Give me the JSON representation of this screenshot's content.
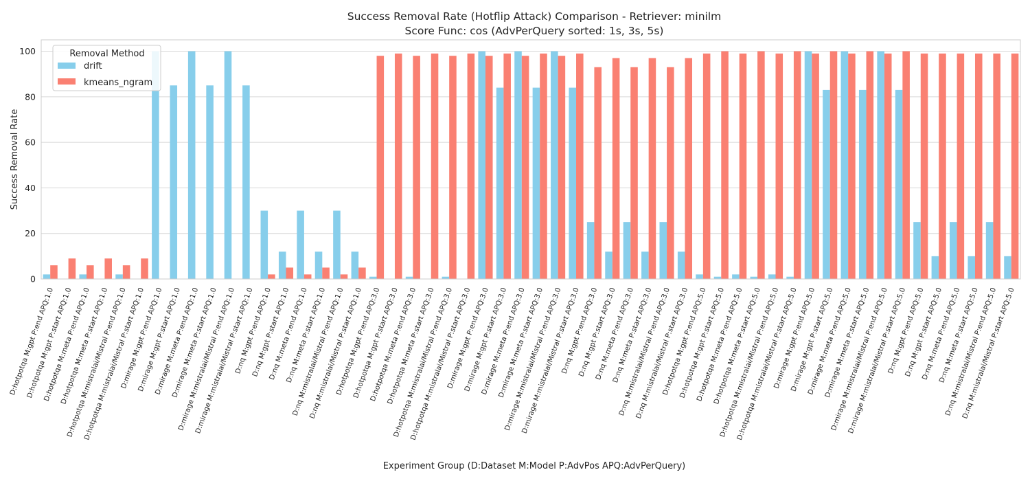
{
  "chart_data": {
    "type": "bar",
    "title": "Success Removal Rate (Hotflip Attack) Comparison - Retriever: minilm",
    "subtitle": "Score Func: cos (AdvPerQuery sorted: 1s, 3s, 5s)",
    "xlabel": "Experiment Group (D:Dataset M:Model P:AdvPos APQ:AdvPerQuery)",
    "ylabel": "Success Removal Rate",
    "ylim": [
      0,
      105
    ],
    "yticks": [
      0,
      20,
      40,
      60,
      80,
      100
    ],
    "grid": true,
    "legend": {
      "title": "Removal Method",
      "placement": "top-left"
    },
    "categories": [
      "D:hotpotqa M:gpt P:end APQ:1.0",
      "D:hotpotqa M:gpt P:start APQ:1.0",
      "D:hotpotqa M:meta P:end APQ:1.0",
      "D:hotpotqa M:meta P:start APQ:1.0",
      "D:hotpotqa M:mistralai/Mistral P:end APQ:1.0",
      "D:hotpotqa M:mistralai/Mistral P:start APQ:1.0",
      "D:mirage M:gpt P:end APQ:1.0",
      "D:mirage M:gpt P:start APQ:1.0",
      "D:mirage M:meta P:end APQ:1.0",
      "D:mirage M:meta P:start APQ:1.0",
      "D:mirage M:mistralai/Mistral P:end APQ:1.0",
      "D:mirage M:mistralai/Mistral P:start APQ:1.0",
      "D:nq M:gpt P:end APQ:1.0",
      "D:nq M:gpt P:start APQ:1.0",
      "D:nq M:meta P:end APQ:1.0",
      "D:nq M:meta P:start APQ:1.0",
      "D:nq M:mistralai/Mistral P:end APQ:1.0",
      "D:nq M:mistralai/Mistral P:start APQ:1.0",
      "D:hotpotqa M:gpt P:end APQ:3.0",
      "D:hotpotqa M:gpt P:start APQ:3.0",
      "D:hotpotqa M:meta P:end APQ:3.0",
      "D:hotpotqa M:meta P:start APQ:3.0",
      "D:hotpotqa M:mistralai/Mistral P:end APQ:3.0",
      "D:hotpotqa M:mistralai/Mistral P:start APQ:3.0",
      "D:mirage M:gpt P:end APQ:3.0",
      "D:mirage M:gpt P:start APQ:3.0",
      "D:mirage M:meta P:end APQ:3.0",
      "D:mirage M:meta P:start APQ:3.0",
      "D:mirage M:mistralai/Mistral P:end APQ:3.0",
      "D:mirage M:mistralai/Mistral P:start APQ:3.0",
      "D:nq M:gpt P:end APQ:3.0",
      "D:nq M:gpt P:start APQ:3.0",
      "D:nq M:meta P:end APQ:3.0",
      "D:nq M:meta P:start APQ:3.0",
      "D:nq M:mistralai/Mistral P:end APQ:3.0",
      "D:nq M:mistralai/Mistral P:start APQ:3.0",
      "D:hotpotqa M:gpt P:end APQ:5.0",
      "D:hotpotqa M:gpt P:start APQ:5.0",
      "D:hotpotqa M:meta P:end APQ:5.0",
      "D:hotpotqa M:meta P:start APQ:5.0",
      "D:hotpotqa M:mistralai/Mistral P:end APQ:5.0",
      "D:hotpotqa M:mistralai/Mistral P:start APQ:5.0",
      "D:mirage M:gpt P:end APQ:5.0",
      "D:mirage M:gpt P:start APQ:5.0",
      "D:mirage M:meta P:end APQ:5.0",
      "D:mirage M:meta P:start APQ:5.0",
      "D:mirage M:mistralai/Mistral P:end APQ:5.0",
      "D:mirage M:mistralai/Mistral P:start APQ:5.0",
      "D:nq M:gpt P:end APQ:5.0",
      "D:nq M:gpt P:start APQ:5.0",
      "D:nq M:meta P:end APQ:5.0",
      "D:nq M:meta P:start APQ:5.0",
      "D:nq M:mistralai/Mistral P:end APQ:5.0",
      "D:nq M:mistralai/Mistral P:start APQ:5.0"
    ],
    "series": [
      {
        "name": "drift",
        "color": "#87CEEB",
        "values": [
          2,
          0,
          2,
          0,
          2,
          0,
          100,
          85,
          100,
          85,
          100,
          85,
          30,
          12,
          30,
          12,
          30,
          12,
          1,
          0,
          1,
          0,
          1,
          0,
          100,
          84,
          100,
          84,
          100,
          84,
          25,
          12,
          25,
          12,
          25,
          12,
          2,
          1,
          2,
          1,
          2,
          1,
          100,
          83,
          100,
          83,
          100,
          83,
          25,
          10,
          25,
          10,
          25,
          10
        ]
      },
      {
        "name": "kmeans_ngram",
        "color": "#FA8072",
        "values": [
          6,
          9,
          6,
          9,
          6,
          9,
          0,
          0,
          0,
          0,
          0,
          0,
          2,
          5,
          2,
          5,
          2,
          5,
          98,
          99,
          98,
          99,
          98,
          99,
          98,
          99,
          98,
          99,
          98,
          99,
          93,
          97,
          93,
          97,
          93,
          97,
          99,
          100,
          99,
          100,
          99,
          100,
          99,
          100,
          99,
          100,
          99,
          100,
          99,
          99,
          99,
          99,
          99,
          99
        ]
      }
    ]
  }
}
